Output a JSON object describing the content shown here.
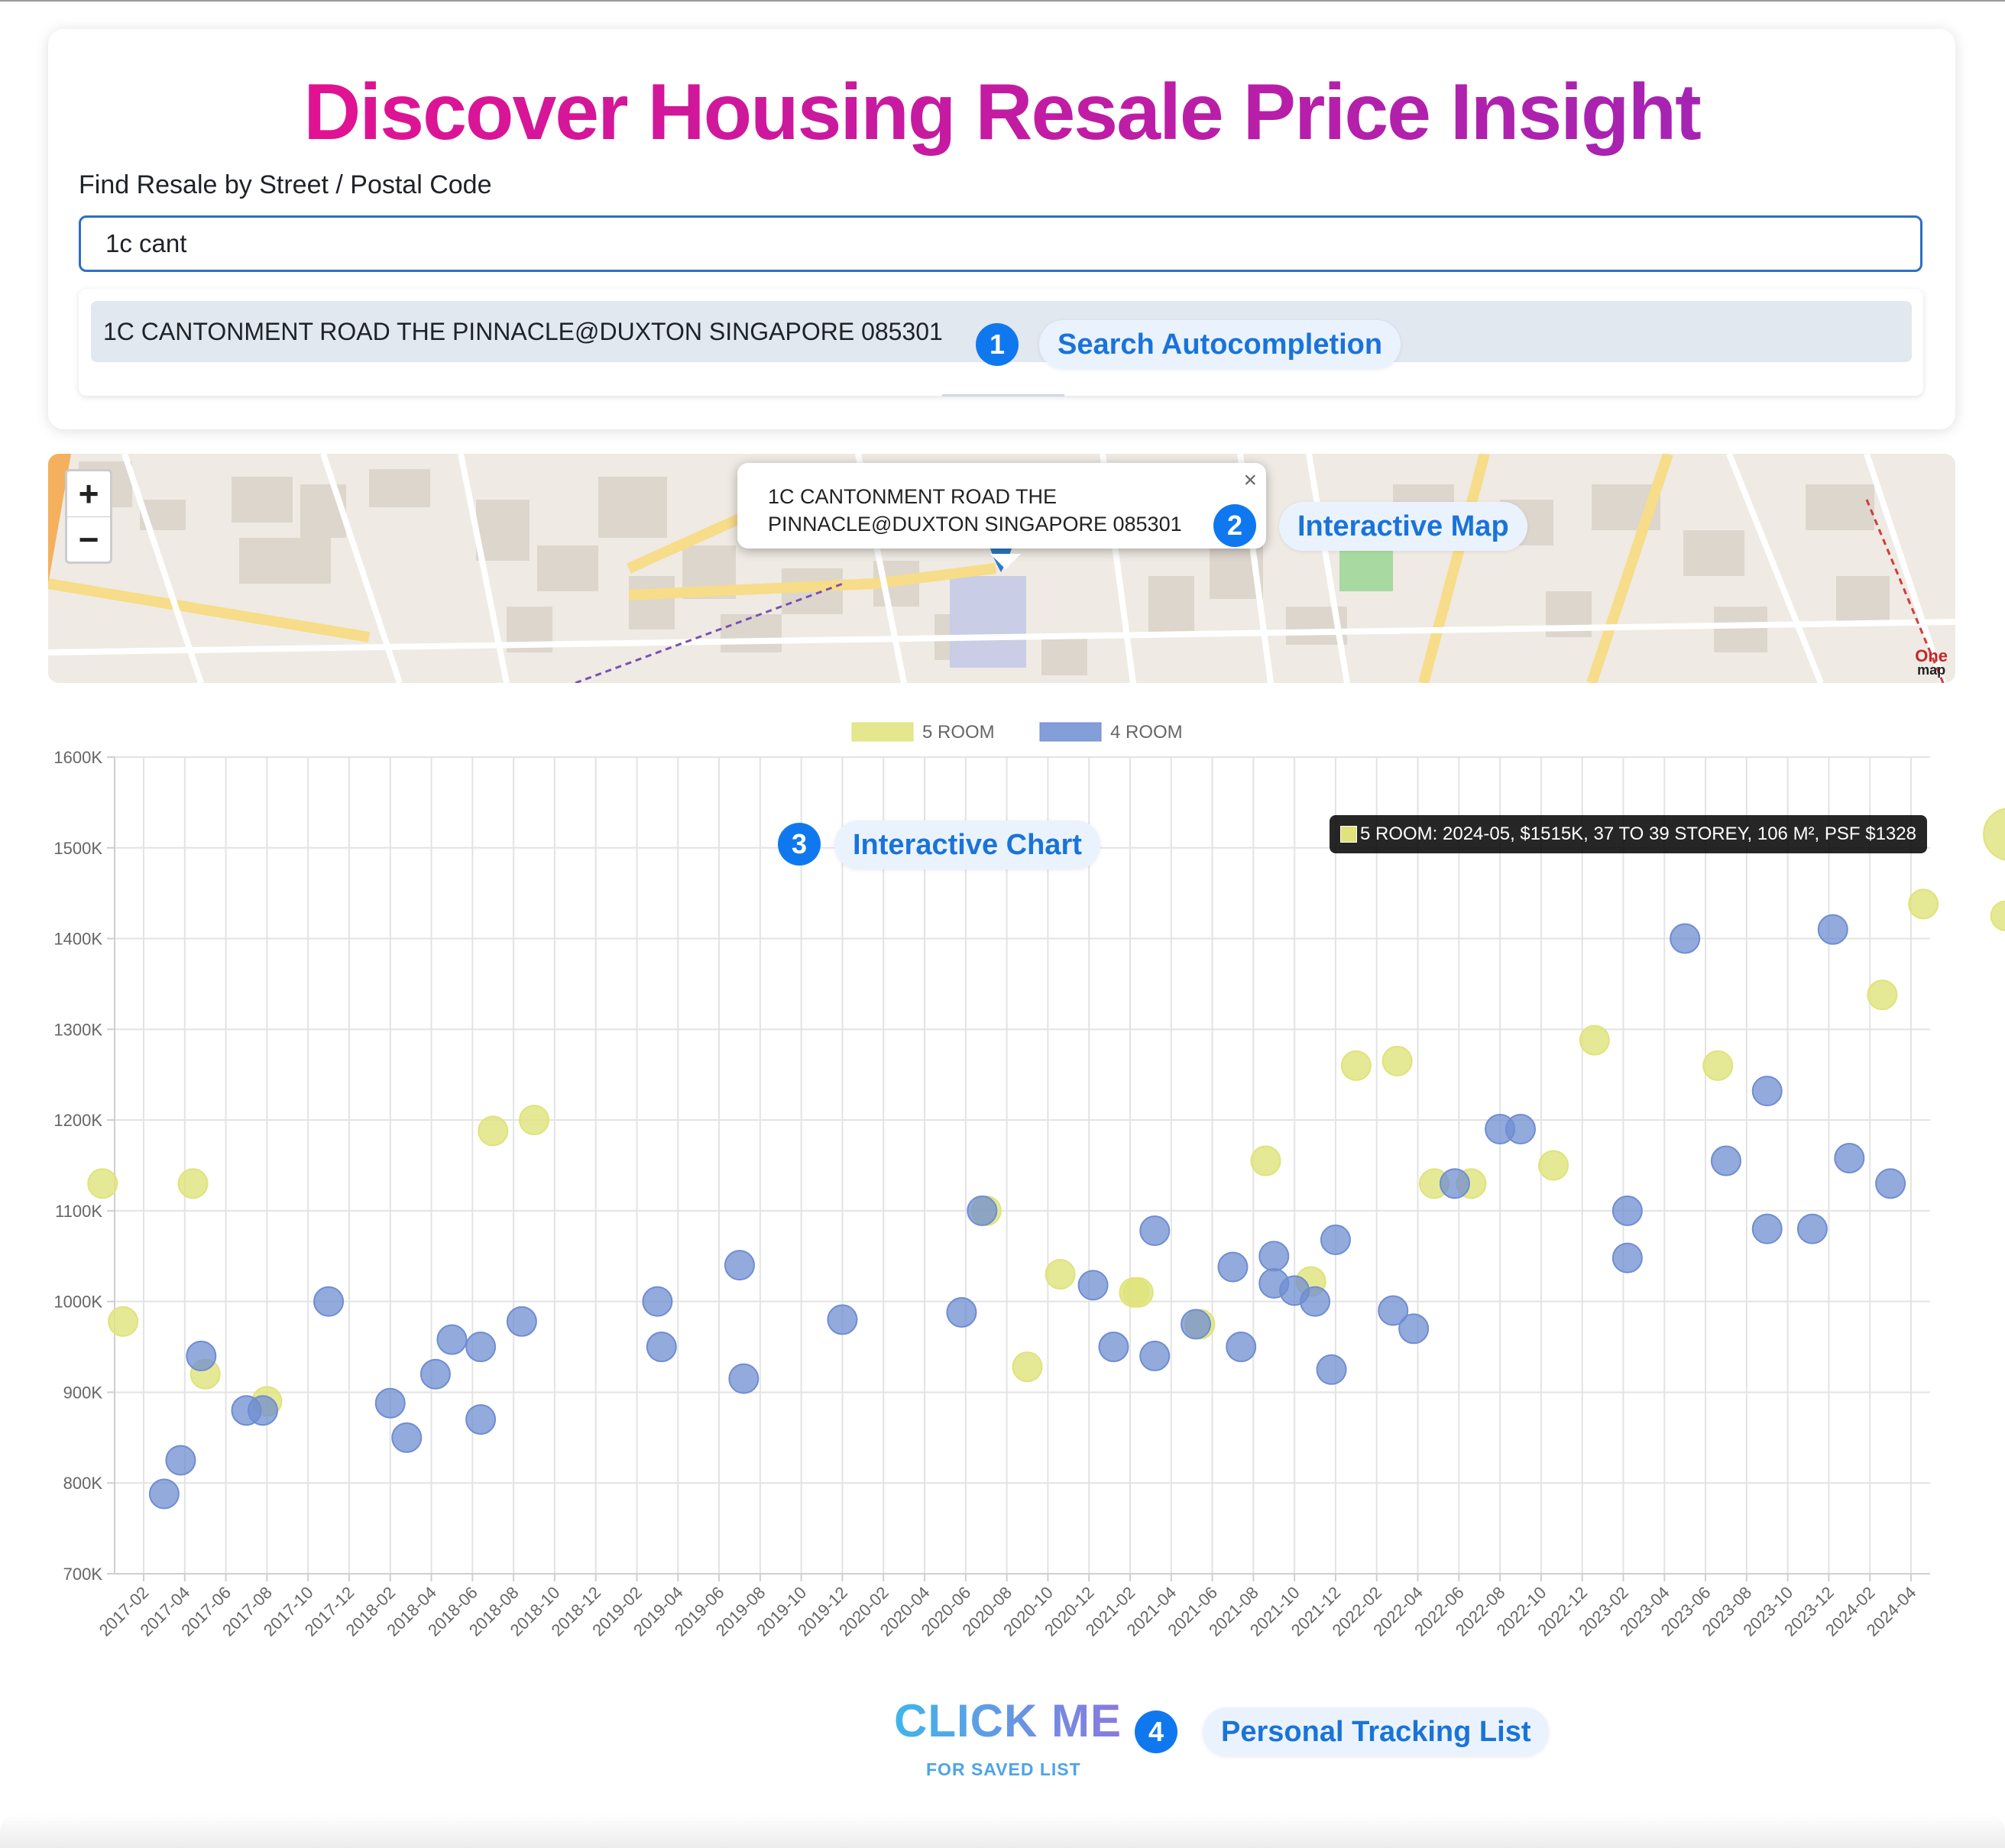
{
  "header": {
    "title": "Discover Housing Resale Price Insight",
    "search_label": "Find Resale by Street / Postal Code",
    "search_value": "1c cant",
    "suggestion": "1C CANTONMENT ROAD THE PINNACLE@DUXTON SINGAPORE 085301"
  },
  "callouts": [
    {
      "num": "1",
      "label": "Search Autocompletion"
    },
    {
      "num": "2",
      "label": "Interactive Map"
    },
    {
      "num": "3",
      "label": "Interactive Chart"
    },
    {
      "num": "4",
      "label": "Personal Tracking List"
    }
  ],
  "map": {
    "zoom_in": "+",
    "zoom_out": "−",
    "popup_line1": "1C CANTONMENT ROAD THE",
    "popup_line2": "PINNACLE@DUXTON SINGAPORE 085301",
    "close": "×",
    "logo_top": "One",
    "logo_bottom": "map"
  },
  "tooltip": "5 ROOM: 2024-05, $1515K, 37 TO 39 STOREY, 106 M², PSF $1328",
  "chart_data": {
    "type": "scatter",
    "y_ticks": [
      "700K",
      "800K",
      "900K",
      "1000K",
      "1100K",
      "1200K",
      "1300K",
      "1400K",
      "1500K",
      "1600K"
    ],
    "ylim": [
      700,
      1600
    ],
    "x_labels": [
      "2017-02",
      "2017-04",
      "2017-06",
      "2017-08",
      "2017-10",
      "2017-12",
      "2018-02",
      "2018-04",
      "2018-06",
      "2018-08",
      "2018-10",
      "2018-12",
      "2019-02",
      "2019-04",
      "2019-06",
      "2019-08",
      "2019-10",
      "2019-12",
      "2020-02",
      "2020-04",
      "2020-06",
      "2020-08",
      "2020-10",
      "2020-12",
      "2021-02",
      "2021-04",
      "2021-06",
      "2021-08",
      "2021-10",
      "2021-12",
      "2022-02",
      "2022-04",
      "2022-06",
      "2022-08",
      "2022-10",
      "2022-12",
      "2023-02",
      "2023-04",
      "2023-06",
      "2023-08",
      "2023-10",
      "2023-12",
      "2024-02",
      "2024-04"
    ],
    "grid": true,
    "legend_position": "top",
    "series": [
      {
        "name": "5 ROOM",
        "color": "#dfe37a",
        "points": [
          [
            -1,
            1130
          ],
          [
            -0.5,
            978
          ],
          [
            1.5,
            920
          ],
          [
            1.2,
            1130
          ],
          [
            3,
            890
          ],
          [
            8.5,
            1188
          ],
          [
            9.5,
            1200
          ],
          [
            20.5,
            1100
          ],
          [
            21.5,
            928
          ],
          [
            22.3,
            1030
          ],
          [
            24.1,
            1010
          ],
          [
            24.2,
            1010
          ],
          [
            25.7,
            975
          ],
          [
            27.3,
            1155
          ],
          [
            28.4,
            1022
          ],
          [
            29.5,
            1260
          ],
          [
            30.5,
            1265
          ],
          [
            31.4,
            1130
          ],
          [
            32.3,
            1130
          ],
          [
            34.3,
            1150
          ],
          [
            35.3,
            1288
          ],
          [
            38.3,
            1260
          ],
          [
            42.3,
            1338
          ],
          [
            43.3,
            1438
          ],
          [
            45.3,
            1425
          ],
          [
            45.4,
            1515
          ]
        ],
        "sizes": [
          1,
          1,
          1,
          1,
          1,
          1,
          1,
          1,
          1,
          1,
          1,
          1,
          1,
          1,
          1,
          1,
          1,
          1,
          1,
          1,
          1,
          1,
          1,
          1,
          1,
          2
        ]
      },
      {
        "name": "4 ROOM",
        "color": "#6f8dd2",
        "points": [
          [
            0.5,
            788
          ],
          [
            0.9,
            825
          ],
          [
            1.4,
            940
          ],
          [
            2.5,
            880
          ],
          [
            2.9,
            880
          ],
          [
            4.5,
            1000
          ],
          [
            6.0,
            888
          ],
          [
            6.4,
            850
          ],
          [
            7.1,
            920
          ],
          [
            7.5,
            958
          ],
          [
            8.2,
            950
          ],
          [
            8.2,
            870
          ],
          [
            9.2,
            978
          ],
          [
            12.5,
            1000
          ],
          [
            12.6,
            950
          ],
          [
            14.5,
            1040
          ],
          [
            14.6,
            915
          ],
          [
            17.0,
            980
          ],
          [
            19.9,
            988
          ],
          [
            20.4,
            1100
          ],
          [
            23.1,
            1018
          ],
          [
            23.6,
            950
          ],
          [
            24.6,
            1078
          ],
          [
            24.6,
            940
          ],
          [
            25.6,
            975
          ],
          [
            26.5,
            1038
          ],
          [
            26.7,
            950
          ],
          [
            27.5,
            1050
          ],
          [
            27.5,
            1020
          ],
          [
            28.0,
            1012
          ],
          [
            28.5,
            1000
          ],
          [
            28.9,
            925
          ],
          [
            29.0,
            1068
          ],
          [
            30.4,
            990
          ],
          [
            30.9,
            970
          ],
          [
            31.9,
            1130
          ],
          [
            33.0,
            1190
          ],
          [
            33.5,
            1190
          ],
          [
            36.1,
            1100
          ],
          [
            36.1,
            1048
          ],
          [
            37.5,
            1400
          ],
          [
            38.5,
            1155
          ],
          [
            39.5,
            1232
          ],
          [
            39.5,
            1080
          ],
          [
            40.6,
            1080
          ],
          [
            41.1,
            1410
          ],
          [
            41.5,
            1158
          ],
          [
            42.5,
            1130
          ]
        ],
        "sizes": [
          1,
          1,
          1,
          1,
          1,
          1,
          1,
          1,
          1,
          1,
          1,
          1,
          1,
          1,
          1,
          1,
          1,
          1,
          1,
          1,
          1,
          1,
          1,
          1,
          1,
          1,
          1,
          1,
          1,
          1,
          1,
          1,
          1,
          1,
          1,
          1,
          1,
          1,
          1,
          1,
          1,
          1,
          1,
          1,
          1,
          1,
          1,
          1
        ]
      }
    ]
  },
  "cta": {
    "title": "CLICK ME",
    "subtitle": "FOR SAVED LIST"
  }
}
